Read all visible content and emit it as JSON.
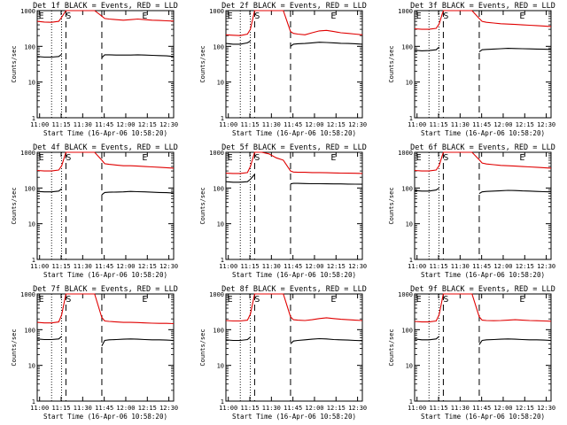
{
  "colors": {
    "events": "#000000",
    "lld": "#e00000",
    "frame": "#000000",
    "background": "#ffffff"
  },
  "chart_data": [
    {
      "type": "line",
      "title": "Det 1f BLACK = Events, RED = LLD",
      "xlabel": "Start Time (16-Apr-06 10:58:20)",
      "ylabel": "Counts/sec",
      "xticks": [
        "11:00",
        "11:15",
        "11:30",
        "11:45",
        "12:00",
        "12:15",
        "12:30"
      ],
      "yticks": [
        "1",
        "10",
        "100",
        "1000"
      ],
      "x_minutes": [
        0,
        5,
        10,
        15,
        17,
        20,
        25,
        30,
        35,
        40,
        45,
        47,
        50,
        55,
        60,
        65,
        70,
        75,
        80,
        85,
        90,
        95
      ],
      "xlim_minutes": [
        0,
        95
      ],
      "yscale": "log",
      "ylim": [
        1,
        1000
      ],
      "markers": {
        "dotted": [
          10,
          17
        ],
        "dashed": [
          20,
          45
        ],
        "letters": [
          {
            "text": "E",
            "x": 1
          },
          {
            "text": "S",
            "x": 20
          },
          {
            "text": "E",
            "x": 73
          }
        ]
      },
      "series": [
        {
          "name": "BLACK = Events",
          "values": [
            52,
            50,
            50,
            52,
            60,
            null,
            null,
            null,
            null,
            null,
            48,
            58,
            58,
            57,
            57,
            57,
            58,
            57,
            56,
            55,
            54,
            52
          ]
        },
        {
          "name": "RED = LLD",
          "values": [
            500,
            480,
            470,
            500,
            650,
            1000,
            1000,
            1000,
            1000,
            1000,
            700,
            600,
            580,
            560,
            540,
            560,
            580,
            560,
            540,
            530,
            520,
            510
          ]
        }
      ]
    },
    {
      "type": "line",
      "title": "Det 2f BLACK = Events, RED = LLD",
      "xlabel": "Start Time (16-Apr-06 10:58:20)",
      "ylabel": "Counts/sec",
      "xticks": [
        "11:00",
        "11:15",
        "11:30",
        "11:45",
        "12:00",
        "12:15",
        "12:30"
      ],
      "yticks": [
        "1",
        "10",
        "100",
        "1000"
      ],
      "x_minutes": [
        0,
        5,
        10,
        15,
        17,
        20,
        25,
        30,
        35,
        40,
        45,
        47,
        50,
        55,
        60,
        65,
        70,
        75,
        80,
        85,
        90,
        95
      ],
      "xlim_minutes": [
        0,
        95
      ],
      "yscale": "log",
      "ylim": [
        1,
        1000
      ],
      "markers": {
        "dotted": [
          10,
          17
        ],
        "dashed": [
          20,
          45
        ],
        "letters": [
          {
            "text": "E",
            "x": 1
          },
          {
            "text": "S",
            "x": 20
          },
          {
            "text": "E",
            "x": 73
          }
        ]
      },
      "series": [
        {
          "name": "BLACK = Events",
          "values": [
            120,
            115,
            115,
            125,
            140,
            null,
            null,
            null,
            null,
            null,
            100,
            115,
            118,
            120,
            125,
            130,
            128,
            125,
            122,
            120,
            118,
            115
          ]
        },
        {
          "name": "RED = LLD",
          "values": [
            210,
            205,
            200,
            220,
            300,
            1000,
            1000,
            1000,
            1000,
            1000,
            260,
            230,
            220,
            210,
            240,
            270,
            280,
            260,
            240,
            230,
            220,
            210
          ]
        }
      ]
    },
    {
      "type": "line",
      "title": "Det 3f BLACK = Events, RED = LLD",
      "xlabel": "Start Time (16-Apr-06 10:58:20)",
      "ylabel": "Counts/sec",
      "xticks": [
        "11:00",
        "11:15",
        "11:30",
        "11:45",
        "12:00",
        "12:15",
        "12:30"
      ],
      "yticks": [
        "1",
        "10",
        "100",
        "1000"
      ],
      "x_minutes": [
        0,
        5,
        10,
        15,
        17,
        20,
        25,
        30,
        35,
        40,
        45,
        47,
        50,
        55,
        60,
        65,
        70,
        75,
        80,
        85,
        90,
        95
      ],
      "xlim_minutes": [
        0,
        95
      ],
      "yscale": "log",
      "ylim": [
        1,
        1000
      ],
      "markers": {
        "dotted": [
          10,
          17
        ],
        "dashed": [
          20,
          45
        ],
        "letters": [
          {
            "text": "E",
            "x": 1
          },
          {
            "text": "S",
            "x": 20
          },
          {
            "text": "E",
            "x": 73
          }
        ]
      },
      "series": [
        {
          "name": "BLACK = Events",
          "values": [
            78,
            75,
            76,
            80,
            95,
            null,
            null,
            null,
            null,
            null,
            70,
            80,
            82,
            84,
            86,
            88,
            87,
            86,
            85,
            84,
            83,
            82
          ]
        },
        {
          "name": "RED = LLD",
          "values": [
            310,
            300,
            300,
            320,
            420,
            1000,
            1000,
            1000,
            1000,
            1000,
            600,
            500,
            470,
            450,
            430,
            420,
            410,
            400,
            390,
            380,
            370,
            360
          ]
        }
      ]
    },
    {
      "type": "line",
      "title": "Det 4f BLACK = Events, RED = LLD",
      "xlabel": "Start Time (16-Apr-06 10:58:20)",
      "ylabel": "Counts/sec",
      "xticks": [
        "11:00",
        "11:15",
        "11:30",
        "11:45",
        "12:00",
        "12:15",
        "12:30"
      ],
      "yticks": [
        "1",
        "10",
        "100",
        "1000"
      ],
      "x_minutes": [
        0,
        5,
        10,
        15,
        17,
        20,
        25,
        30,
        35,
        40,
        45,
        47,
        50,
        55,
        60,
        65,
        70,
        75,
        80,
        85,
        90,
        95
      ],
      "xlim_minutes": [
        0,
        95
      ],
      "yscale": "log",
      "ylim": [
        1,
        1000
      ],
      "markers": {
        "dotted": [
          10,
          17
        ],
        "dashed": [
          20,
          45
        ],
        "letters": [
          {
            "text": "E",
            "x": 1
          },
          {
            "text": "S",
            "x": 20
          },
          {
            "text": "E",
            "x": 73
          }
        ]
      },
      "series": [
        {
          "name": "BLACK = Events",
          "values": [
            80,
            78,
            78,
            82,
            95,
            null,
            null,
            null,
            null,
            null,
            65,
            75,
            76,
            77,
            78,
            80,
            79,
            78,
            76,
            75,
            74,
            72
          ]
        },
        {
          "name": "RED = LLD",
          "values": [
            310,
            300,
            300,
            320,
            420,
            1000,
            1000,
            1000,
            1000,
            1000,
            600,
            480,
            460,
            440,
            420,
            420,
            410,
            400,
            390,
            380,
            370,
            360
          ]
        }
      ]
    },
    {
      "type": "line",
      "title": "Det 5f BLACK = Events, RED = LLD",
      "xlabel": "Start Time (16-Apr-06 10:58:20)",
      "ylabel": "Counts/sec",
      "xticks": [
        "11:00",
        "11:15",
        "11:30",
        "11:45",
        "12:00",
        "12:15",
        "12:30"
      ],
      "yticks": [
        "1",
        "10",
        "100",
        "1000"
      ],
      "x_minutes": [
        0,
        5,
        10,
        15,
        17,
        20,
        25,
        30,
        35,
        40,
        45,
        47,
        50,
        55,
        60,
        65,
        70,
        75,
        80,
        85,
        90,
        95
      ],
      "xlim_minutes": [
        0,
        95
      ],
      "yscale": "log",
      "ylim": [
        1,
        1000
      ],
      "markers": {
        "dotted": [
          10,
          17
        ],
        "dashed": [
          20,
          45
        ],
        "letters": [
          {
            "text": "E",
            "x": 1
          },
          {
            "text": "S",
            "x": 20
          },
          {
            "text": "E",
            "x": 73
          }
        ]
      },
      "series": [
        {
          "name": "BLACK = Events",
          "values": [
            150,
            145,
            145,
            150,
            175,
            240,
            null,
            null,
            null,
            null,
            130,
            135,
            135,
            133,
            132,
            132,
            131,
            130,
            130,
            129,
            128,
            127
          ]
        },
        {
          "name": "RED = LLD",
          "values": [
            260,
            255,
            255,
            270,
            400,
            1000,
            1000,
            900,
            700,
            600,
            300,
            280,
            275,
            275,
            270,
            270,
            268,
            265,
            262,
            260,
            258,
            255
          ]
        }
      ]
    },
    {
      "type": "line",
      "title": "Det 6f BLACK = Events, RED = LLD",
      "xlabel": "Start Time (16-Apr-06 10:58:20)",
      "ylabel": "Counts/sec",
      "xticks": [
        "11:00",
        "11:15",
        "11:30",
        "11:45",
        "12:00",
        "12:15",
        "12:30"
      ],
      "yticks": [
        "1",
        "10",
        "100",
        "1000"
      ],
      "x_minutes": [
        0,
        5,
        10,
        15,
        17,
        20,
        25,
        30,
        35,
        40,
        45,
        47,
        50,
        55,
        60,
        65,
        70,
        75,
        80,
        85,
        90,
        95
      ],
      "xlim_minutes": [
        0,
        95
      ],
      "yscale": "log",
      "ylim": [
        1,
        1000
      ],
      "markers": {
        "dotted": [
          10,
          17
        ],
        "dashed": [
          20,
          45
        ],
        "letters": [
          {
            "text": "E",
            "x": 1
          },
          {
            "text": "S",
            "x": 20
          },
          {
            "text": "E",
            "x": 73
          }
        ]
      },
      "series": [
        {
          "name": "BLACK = Events",
          "values": [
            85,
            82,
            82,
            88,
            100,
            null,
            null,
            null,
            null,
            null,
            70,
            78,
            80,
            82,
            84,
            86,
            85,
            83,
            82,
            80,
            79,
            78
          ]
        },
        {
          "name": "RED = LLD",
          "values": [
            310,
            300,
            300,
            320,
            420,
            1000,
            1000,
            1000,
            1000,
            1000,
            620,
            500,
            470,
            450,
            430,
            420,
            410,
            400,
            390,
            380,
            370,
            360
          ]
        }
      ]
    },
    {
      "type": "line",
      "title": "Det 7f BLACK = Events, RED = LLD",
      "xlabel": "Start Time (16-Apr-06 10:58:20)",
      "ylabel": "Counts/sec",
      "xticks": [
        "11:00",
        "11:15",
        "11:30",
        "11:45",
        "12:00",
        "12:15",
        "12:30"
      ],
      "yticks": [
        "1",
        "10",
        "100",
        "1000"
      ],
      "x_minutes": [
        0,
        5,
        10,
        15,
        17,
        20,
        25,
        30,
        35,
        40,
        45,
        47,
        50,
        55,
        60,
        65,
        70,
        75,
        80,
        85,
        90,
        95
      ],
      "xlim_minutes": [
        0,
        95
      ],
      "yscale": "log",
      "ylim": [
        1,
        1000
      ],
      "markers": {
        "dotted": [
          10,
          17
        ],
        "dashed": [
          20,
          45
        ],
        "letters": [
          {
            "text": "E",
            "x": 1
          },
          {
            "text": "S",
            "x": 20
          },
          {
            "text": "E",
            "x": 73
          }
        ]
      },
      "series": [
        {
          "name": "BLACK = Events",
          "values": [
            55,
            53,
            53,
            55,
            65,
            null,
            null,
            null,
            null,
            null,
            35,
            50,
            52,
            53,
            54,
            55,
            54,
            53,
            52,
            52,
            51,
            50
          ]
        },
        {
          "name": "RED = LLD",
          "values": [
            160,
            155,
            155,
            165,
            260,
            1000,
            1000,
            1000,
            1000,
            1000,
            220,
            175,
            170,
            165,
            160,
            160,
            158,
            155,
            152,
            150,
            150,
            148
          ]
        }
      ]
    },
    {
      "type": "line",
      "title": "Det 8f BLACK = Events, RED = LLD",
      "xlabel": "Start Time (16-Apr-06 10:58:20)",
      "ylabel": "Counts/sec",
      "xticks": [
        "11:00",
        "11:15",
        "11:30",
        "11:45",
        "12:00",
        "12:15",
        "12:30"
      ],
      "yticks": [
        "1",
        "10",
        "100",
        "1000"
      ],
      "x_minutes": [
        0,
        5,
        10,
        15,
        17,
        20,
        25,
        30,
        35,
        40,
        45,
        47,
        50,
        55,
        60,
        65,
        70,
        75,
        80,
        85,
        90,
        95
      ],
      "xlim_minutes": [
        0,
        95
      ],
      "yscale": "log",
      "ylim": [
        1,
        1000
      ],
      "markers": {
        "dotted": [
          10,
          17
        ],
        "dashed": [
          20,
          45
        ],
        "letters": [
          {
            "text": "E",
            "x": 1
          },
          {
            "text": "S",
            "x": 20
          },
          {
            "text": "E",
            "x": 73
          }
        ]
      },
      "series": [
        {
          "name": "BLACK = Events",
          "values": [
            52,
            50,
            50,
            53,
            62,
            null,
            null,
            null,
            null,
            null,
            40,
            48,
            50,
            52,
            54,
            56,
            55,
            53,
            52,
            51,
            50,
            49
          ]
        },
        {
          "name": "RED = LLD",
          "values": [
            180,
            175,
            175,
            185,
            270,
            1000,
            1000,
            1000,
            1000,
            1000,
            230,
            190,
            185,
            180,
            190,
            205,
            215,
            205,
            195,
            190,
            185,
            180
          ]
        }
      ]
    },
    {
      "type": "line",
      "title": "Det 9f BLACK = Events, RED = LLD",
      "xlabel": "Start Time (16-Apr-06 10:58:20)",
      "ylabel": "Counts/sec",
      "xticks": [
        "11:00",
        "11:15",
        "11:30",
        "11:45",
        "12:00",
        "12:15",
        "12:30"
      ],
      "yticks": [
        "1",
        "10",
        "100",
        "1000"
      ],
      "x_minutes": [
        0,
        5,
        10,
        15,
        17,
        20,
        25,
        30,
        35,
        40,
        45,
        47,
        50,
        55,
        60,
        65,
        70,
        75,
        80,
        85,
        90,
        95
      ],
      "xlim_minutes": [
        0,
        95
      ],
      "yscale": "log",
      "ylim": [
        1,
        1000
      ],
      "markers": {
        "dotted": [
          10,
          17
        ],
        "dashed": [
          20,
          45
        ],
        "letters": [
          {
            "text": "E",
            "x": 1
          },
          {
            "text": "S",
            "x": 20
          },
          {
            "text": "E",
            "x": 73
          }
        ]
      },
      "series": [
        {
          "name": "BLACK = Events",
          "values": [
            55,
            52,
            52,
            55,
            65,
            null,
            null,
            null,
            null,
            null,
            38,
            50,
            52,
            53,
            54,
            55,
            54,
            53,
            52,
            52,
            51,
            50
          ]
        },
        {
          "name": "RED = LLD",
          "values": [
            170,
            165,
            165,
            175,
            260,
            1000,
            1000,
            1000,
            1000,
            1000,
            230,
            185,
            180,
            178,
            180,
            185,
            190,
            185,
            180,
            178,
            175,
            172
          ]
        }
      ]
    }
  ]
}
